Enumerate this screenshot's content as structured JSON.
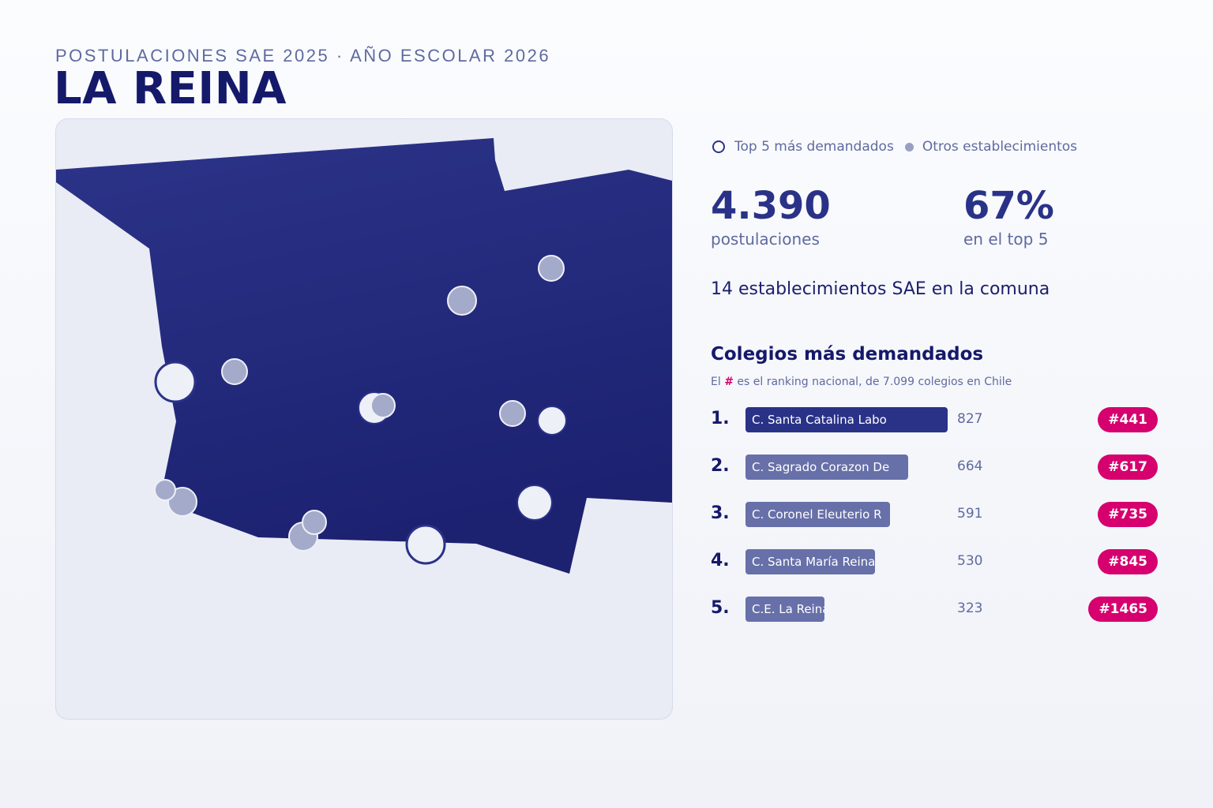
{
  "header": {
    "eyebrow": "POSTULACIONES SAE 2025 · AÑO ESCOLAR 2026",
    "title": "LA REINA"
  },
  "legend": {
    "top5_label": "Top 5 más demandados",
    "others_label": "Otros establecimientos"
  },
  "stats": {
    "applications_value": "4.390",
    "applications_label": "postulaciones",
    "top5_share_value": "67%",
    "top5_share_label": "en el top 5"
  },
  "establishments_line": "14 establecimientos SAE en la comuna",
  "ranking": {
    "title": "Colegios más demandados",
    "subtitle_prefix": "El",
    "subtitle_hash": "#",
    "subtitle_suffix": "es el ranking nacional, de 7.099 colegios en Chile",
    "items": [
      {
        "index": "1.",
        "name": "C. Santa Catalina Labo",
        "value": 827,
        "value_label": "827",
        "rank": "#441"
      },
      {
        "index": "2.",
        "name": "C. Sagrado Corazon De",
        "value": 664,
        "value_label": "664",
        "rank": "#617"
      },
      {
        "index": "3.",
        "name": "C. Coronel Eleuterio R",
        "value": 591,
        "value_label": "591",
        "rank": "#735"
      },
      {
        "index": "4.",
        "name": "C. Santa María Reina",
        "value": 530,
        "value_label": "530",
        "rank": "#845"
      },
      {
        "index": "5.",
        "name": "C.E. La Reina",
        "value": 323,
        "value_label": "323",
        "rank": "#1465"
      }
    ]
  },
  "colors": {
    "commune_fill": "#232a84",
    "top_bar": "#2a3288",
    "other_bar": "#6770a8",
    "rank_badge": "#d6006e",
    "other_marker": "#9aa0c4",
    "top_marker": "#eef0f8"
  }
}
